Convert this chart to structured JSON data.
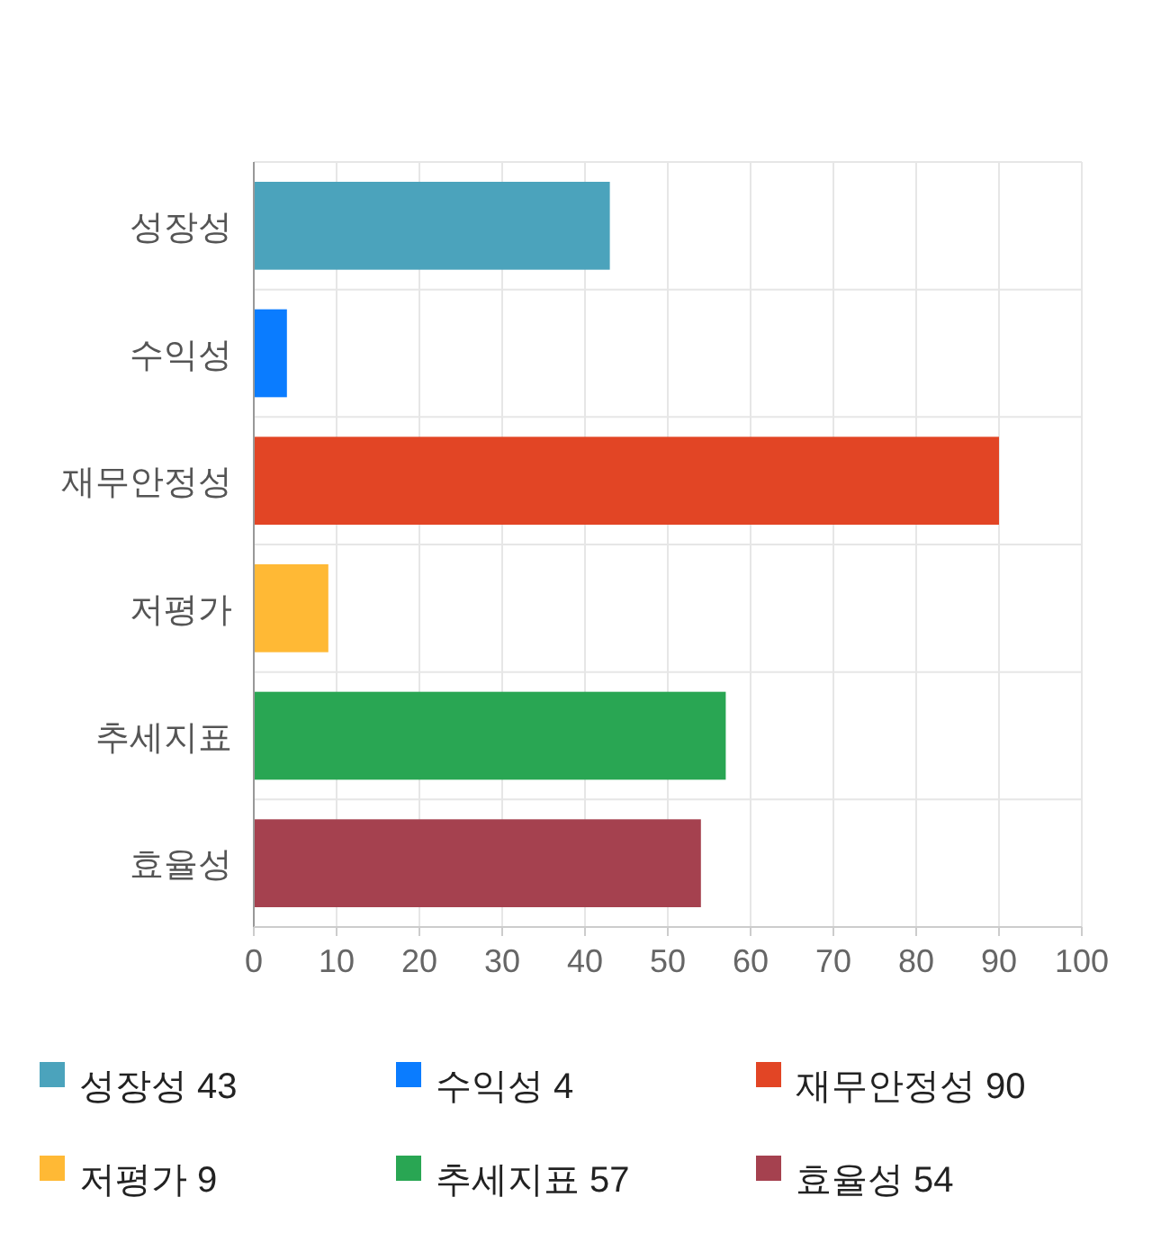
{
  "chart_data": {
    "type": "bar",
    "orientation": "horizontal",
    "categories": [
      "성장성",
      "수익성",
      "재무안정성",
      "저평가",
      "추세지표",
      "효율성"
    ],
    "series": [
      {
        "name": "성장성 43",
        "color": "#4ba3bc",
        "values": [
          43,
          null,
          null,
          null,
          null,
          null
        ]
      },
      {
        "name": "수익성 4",
        "color": "#0a7cff",
        "values": [
          null,
          4,
          null,
          null,
          null,
          null
        ]
      },
      {
        "name": "재무안정성 90",
        "color": "#e24525",
        "values": [
          null,
          null,
          90,
          null,
          null,
          null
        ]
      },
      {
        "name": "저평가 9",
        "color": "#ffb935",
        "values": [
          null,
          null,
          null,
          9,
          null,
          null
        ]
      },
      {
        "name": "추세지표 57",
        "color": "#29a653",
        "values": [
          null,
          null,
          null,
          null,
          57,
          null
        ]
      },
      {
        "name": "효율성 54",
        "color": "#a5414f",
        "values": [
          null,
          null,
          null,
          null,
          null,
          54
        ]
      }
    ],
    "xlim": [
      0,
      100
    ],
    "xticks": [
      0,
      10,
      20,
      30,
      40,
      50,
      60,
      70,
      80,
      90,
      100
    ],
    "grid": true,
    "legend": "bottom"
  }
}
